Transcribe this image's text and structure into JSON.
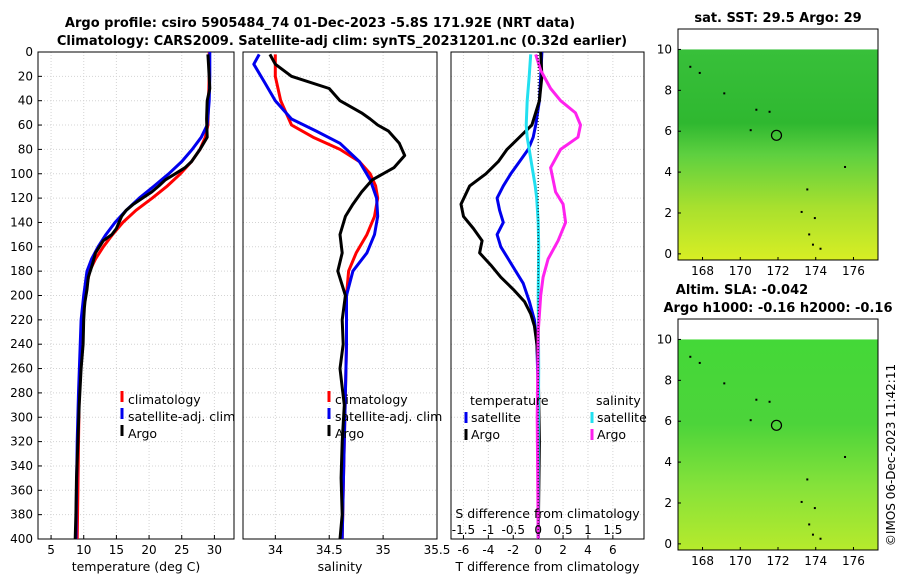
{
  "title": {
    "line1": "Argo profile: csiro 5905484_74 01-Dec-2023 -5.8S 171.92E (NRT data)",
    "line2": "Climatology: CARS2009. Satellite-adj clim: synTS_20231201.nc (0.32d earlier)"
  },
  "side_stamp": "©IMOS 06-Dec-2023 11:42:11",
  "depth_ticks": [
    0,
    20,
    40,
    60,
    80,
    100,
    120,
    140,
    160,
    180,
    200,
    220,
    240,
    260,
    280,
    300,
    320,
    340,
    360,
    380,
    400
  ],
  "colors": {
    "climatology": "#ff0000",
    "satellite": "#0000ee",
    "argo": "#000000",
    "sat_salinity": "#22e0f0",
    "argo_salinity": "#ff22ee",
    "sst_map": "#3ec83e",
    "sla_map": "#5fe83a"
  },
  "chart_data": [
    {
      "type": "line",
      "id": "temperature",
      "xlabel": "temperature (deg C)",
      "xlim": [
        3,
        33
      ],
      "xticks": [
        5,
        10,
        15,
        20,
        25,
        30
      ],
      "ylim": [
        0,
        400
      ],
      "legend": [
        "climatology",
        "satellite-adj. clim",
        "Argo"
      ],
      "series": [
        {
          "name": "climatology",
          "color": "#ff0000",
          "temp": [
            29.2,
            29.2,
            29.1,
            29.0,
            28.6,
            27.8,
            26.5,
            24.8,
            22.8,
            20.5,
            18.0,
            16.0,
            14.4,
            13.0,
            11.8,
            10.9,
            10.2,
            9.8,
            9.5,
            9.3,
            9.2,
            9.1,
            9.0
          ],
          "depth": [
            0,
            20,
            40,
            60,
            70,
            80,
            90,
            100,
            110,
            120,
            130,
            140,
            150,
            160,
            170,
            180,
            200,
            220,
            250,
            280,
            320,
            360,
            400
          ]
        },
        {
          "name": "satellite-adj. clim",
          "color": "#0000ee",
          "temp": [
            29.3,
            29.3,
            29.2,
            28.9,
            28.0,
            26.6,
            25.0,
            23.0,
            20.8,
            18.5,
            16.5,
            14.8,
            13.4,
            12.2,
            11.2,
            10.5,
            10.0,
            9.6,
            9.4,
            9.2,
            9.0,
            8.9,
            8.8
          ],
          "depth": [
            0,
            20,
            40,
            60,
            70,
            80,
            90,
            100,
            110,
            120,
            130,
            140,
            150,
            160,
            170,
            180,
            200,
            220,
            250,
            280,
            320,
            360,
            400
          ]
        },
        {
          "name": "Argo",
          "color": "#000000",
          "temp": [
            29.0,
            29.1,
            29.3,
            28.9,
            28.8,
            28.9,
            27.8,
            26.5,
            25.5,
            24.0,
            22.5,
            21.5,
            20.4,
            19.0,
            17.6,
            16.5,
            15.8,
            15.0,
            14.3,
            13.0,
            12.4,
            11.8,
            11.3,
            10.7,
            10.5,
            10.2,
            10.1,
            10.0,
            9.9,
            9.6,
            9.3,
            9.1,
            8.9,
            8.8,
            8.7
          ],
          "depth": [
            2,
            10,
            30,
            40,
            55,
            70,
            80,
            90,
            95,
            100,
            105,
            110,
            115,
            120,
            125,
            130,
            135,
            145,
            150,
            155,
            160,
            165,
            175,
            185,
            195,
            205,
            210,
            220,
            240,
            260,
            290,
            320,
            350,
            380,
            400
          ]
        }
      ]
    },
    {
      "type": "line",
      "id": "salinity",
      "xlabel": "salinity",
      "xlim": [
        33.7,
        35.5
      ],
      "xticks": [
        34,
        34.5,
        35,
        35.5
      ],
      "ylim": [
        0,
        400
      ],
      "legend": [
        "climatology",
        "satellite-adj. clim",
        "Argo"
      ],
      "series": [
        {
          "name": "climatology",
          "color": "#ff0000",
          "sal": [
            34.0,
            34.0,
            34.05,
            34.15,
            34.35,
            34.6,
            34.78,
            34.88,
            34.93,
            34.95,
            34.92,
            34.85,
            34.75,
            34.68,
            34.66,
            34.66,
            34.65,
            34.64,
            34.63,
            34.62
          ],
          "depth": [
            2,
            20,
            40,
            60,
            70,
            80,
            90,
            100,
            110,
            120,
            135,
            150,
            165,
            180,
            200,
            240,
            280,
            320,
            360,
            400
          ]
        },
        {
          "name": "satellite-adj. clim",
          "color": "#0000ee",
          "sal": [
            33.85,
            33.8,
            33.9,
            34.0,
            34.15,
            34.38,
            34.6,
            34.78,
            34.88,
            34.94,
            34.95,
            34.92,
            34.85,
            34.72,
            34.66,
            34.66,
            34.65,
            34.64,
            34.63,
            34.62
          ],
          "depth": [
            2,
            10,
            25,
            40,
            55,
            65,
            75,
            90,
            105,
            120,
            135,
            150,
            165,
            180,
            200,
            240,
            280,
            320,
            360,
            400
          ]
        },
        {
          "name": "Argo",
          "color": "#000000",
          "sal": [
            33.95,
            34.0,
            34.15,
            34.5,
            34.6,
            34.7,
            34.8,
            34.88,
            34.95,
            35.05,
            35.15,
            35.2,
            35.1,
            34.9,
            34.8,
            34.72,
            34.65,
            34.6,
            34.62,
            34.58,
            34.65,
            34.62,
            34.63,
            34.6,
            34.64,
            34.62,
            34.61,
            34.62,
            34.6
          ],
          "depth": [
            2,
            10,
            20,
            30,
            40,
            45,
            50,
            55,
            60,
            65,
            75,
            85,
            95,
            105,
            115,
            125,
            135,
            150,
            165,
            180,
            200,
            220,
            240,
            260,
            290,
            320,
            350,
            380,
            400
          ]
        }
      ]
    },
    {
      "type": "line",
      "id": "difference",
      "xlabel": "T difference from climatology",
      "xlabel_top": "S difference from climatology",
      "xlim": [
        -7,
        8.5
      ],
      "xticks": [
        -6,
        -4,
        -2,
        0,
        2,
        4,
        6
      ],
      "top_ticks": [
        "-1.5",
        "-1",
        "-0.5",
        "0",
        "0.5",
        "1",
        "1.5"
      ],
      "s_xlim": [
        -1.75,
        2.125
      ],
      "ylim": [
        0,
        400
      ],
      "legend": {
        "temperature_title": "temperature",
        "salinity_title": "salinity",
        "entries": [
          "satellite",
          "Argo",
          "satellite",
          "Argo"
        ]
      },
      "series": [
        {
          "name": "temperature satellite",
          "color": "#0000ee",
          "diff": [
            0.3,
            0.2,
            0.1,
            -0.2,
            -0.4,
            -0.8,
            -1.5,
            -2.2,
            -2.8,
            -3.3,
            -3.1,
            -2.8,
            -3.3,
            -3.0,
            -2.4,
            -1.8,
            -1.2,
            -0.7,
            -0.3,
            -0.1,
            0.0,
            0.0
          ],
          "depth": [
            0,
            20,
            40,
            60,
            70,
            80,
            90,
            100,
            110,
            120,
            130,
            140,
            150,
            160,
            170,
            180,
            190,
            205,
            220,
            240,
            280,
            400
          ]
        },
        {
          "name": "temperature Argo",
          "color": "#000000",
          "diff": [
            0.2,
            0.3,
            0.1,
            -0.5,
            -1.5,
            -2.5,
            -3.2,
            -4.2,
            -5.5,
            -6.2,
            -6.0,
            -5.2,
            -4.5,
            -4.7,
            -3.8,
            -3.0,
            -2.0,
            -1.1,
            -0.6,
            -0.3,
            -0.1,
            0.0,
            0.1,
            0.0
          ],
          "depth": [
            0,
            20,
            40,
            60,
            70,
            80,
            90,
            100,
            110,
            125,
            135,
            145,
            155,
            165,
            175,
            185,
            195,
            205,
            215,
            225,
            240,
            260,
            320,
            400
          ]
        },
        {
          "name": "salinity satellite",
          "color": "#22e0f0",
          "sdiff": [
            -0.15,
            -0.18,
            -0.22,
            -0.24,
            -0.22,
            -0.18,
            -0.14,
            -0.1,
            -0.06,
            -0.03,
            0.0,
            0.01,
            0.0,
            0.01,
            0.0,
            0.0
          ],
          "depth": [
            2,
            20,
            40,
            60,
            70,
            80,
            90,
            100,
            110,
            120,
            140,
            160,
            200,
            260,
            320,
            400
          ]
        },
        {
          "name": "salinity Argo",
          "color": "#ff22ee",
          "sdiff": [
            -0.05,
            0.05,
            0.25,
            0.45,
            0.75,
            0.85,
            0.8,
            0.45,
            0.25,
            0.3,
            0.35,
            0.5,
            0.55,
            0.4,
            0.2,
            0.1,
            0.05,
            0.0,
            -0.02,
            0.0
          ],
          "depth": [
            2,
            15,
            30,
            40,
            50,
            60,
            70,
            80,
            95,
            105,
            115,
            125,
            140,
            155,
            170,
            185,
            200,
            230,
            300,
            400
          ]
        }
      ]
    },
    {
      "type": "heatmap",
      "id": "sst",
      "title": "sat. SST: 29.5 Argo: 29",
      "xticks": [
        168,
        170,
        172,
        174,
        176
      ],
      "yticks": [
        0,
        2,
        4,
        6,
        8,
        10
      ],
      "xlim": [
        166.7,
        177.3
      ],
      "ylim": [
        -0.3,
        11.0
      ],
      "argo_position": [
        171.92,
        5.8
      ]
    },
    {
      "type": "heatmap",
      "id": "sla",
      "title1": "Altim. SLA: -0.042",
      "title2": "Argo h1000: -0.16 h2000: -0.16",
      "xticks": [
        168,
        170,
        172,
        174,
        176
      ],
      "yticks": [
        0,
        2,
        4,
        6,
        8,
        10
      ],
      "xlim": [
        166.7,
        177.3
      ],
      "ylim": [
        -0.3,
        11.0
      ],
      "argo_position": [
        171.92,
        5.8
      ]
    }
  ]
}
